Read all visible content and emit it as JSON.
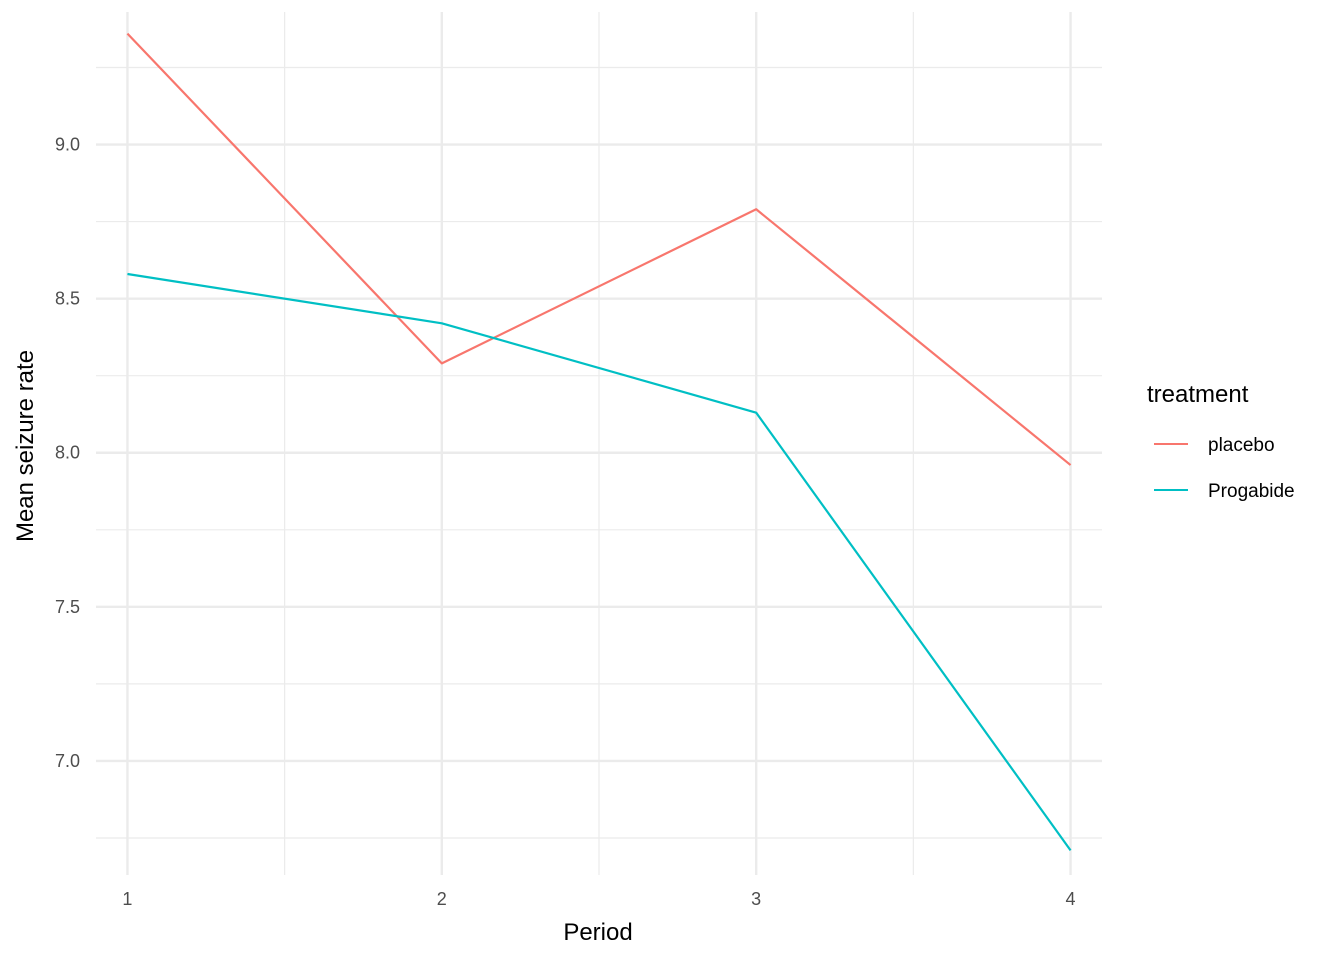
{
  "chart_data": {
    "type": "line",
    "title": "",
    "xlabel": "Period",
    "ylabel": "Mean seizure rate",
    "x": [
      1,
      2,
      3,
      4
    ],
    "x_tick_labels": [
      "1",
      "2",
      "3",
      "4"
    ],
    "y_ticks": [
      7.0,
      7.5,
      8.0,
      8.5,
      9.0
    ],
    "y_tick_labels": [
      "7.0",
      "7.5",
      "8.0",
      "8.5",
      "9.0"
    ],
    "xlim": [
      0.9,
      4.1
    ],
    "ylim": [
      6.63,
      9.43
    ],
    "grid": true,
    "legend": {
      "title": "treatment",
      "position": "right"
    },
    "series": [
      {
        "name": "placebo",
        "color": "#F8766D",
        "values": [
          9.36,
          8.29,
          8.79,
          7.96
        ]
      },
      {
        "name": "Progabide",
        "color": "#00BFC4",
        "values": [
          8.58,
          8.42,
          8.13,
          6.71
        ]
      }
    ]
  }
}
